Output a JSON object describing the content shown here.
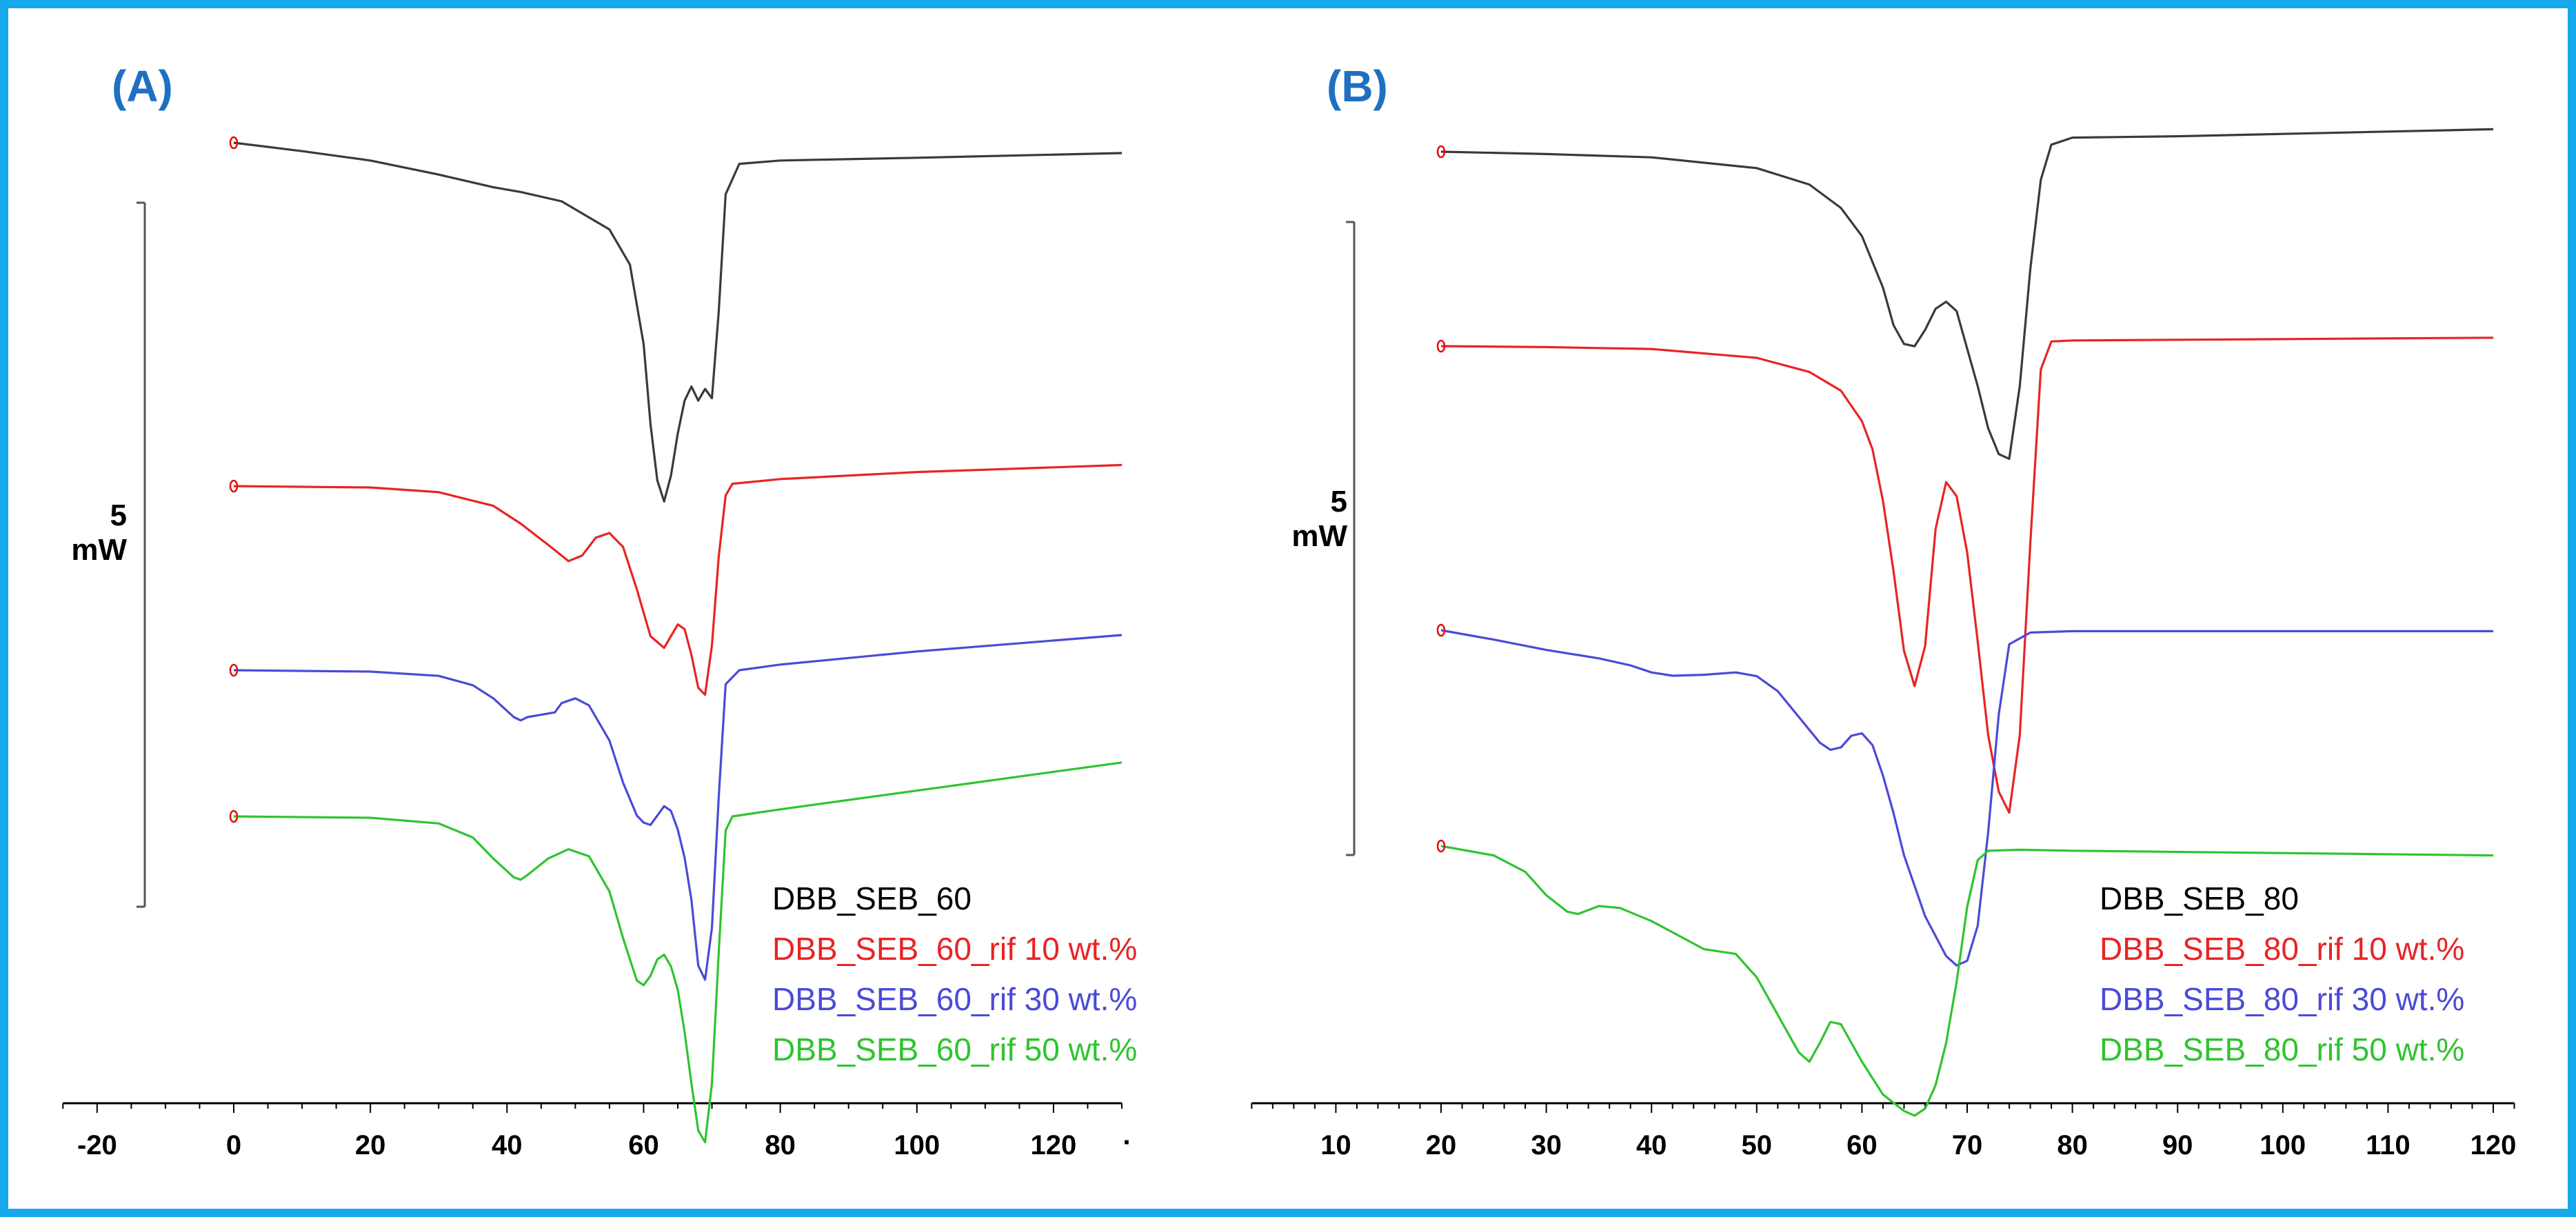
{
  "figure": {
    "border_color": "#18a8ec",
    "panel_letter_color": "#1f70c1"
  },
  "chart_data": [
    {
      "type": "line",
      "panel": "(A)",
      "xlim": [
        -25,
        130
      ],
      "xticks": [
        -20,
        0,
        20,
        40,
        60,
        80,
        100,
        120
      ],
      "xtick_labels": [
        "-20",
        "0",
        "20",
        "40",
        "60",
        "80",
        "100",
        "120"
      ],
      "last_tick_label": "·",
      "scale_bar": {
        "value": "5",
        "unit": "mW"
      },
      "legend_location": "bottom-right",
      "series": [
        {
          "name": "DBB_SEB_60",
          "color": "#3a3a3a",
          "x": [
            0,
            10,
            20,
            30,
            38,
            42,
            48,
            55,
            58,
            60,
            61,
            62,
            63,
            64,
            65,
            66,
            67,
            68,
            69,
            70,
            71,
            72,
            74,
            80,
            100,
            130
          ],
          "y": [
            0,
            -0.18,
            -0.38,
            -0.68,
            -0.95,
            -1.05,
            -1.25,
            -1.85,
            -2.6,
            -4.3,
            -6.0,
            -7.2,
            -7.65,
            -7.1,
            -6.2,
            -5.5,
            -5.2,
            -5.5,
            -5.25,
            -5.45,
            -3.6,
            -1.1,
            -0.45,
            -0.38,
            -0.32,
            -0.22
          ]
        },
        {
          "name": "DBB_SEB_60_rif 10 wt.%",
          "color": "#e82424",
          "x": [
            0,
            20,
            30,
            38,
            42,
            46,
            49,
            51,
            53,
            55,
            57,
            59,
            61,
            63,
            64,
            65,
            66,
            67,
            68,
            69,
            70,
            71,
            72,
            73,
            80,
            100,
            130
          ],
          "y": [
            0,
            -0.03,
            -0.13,
            -0.42,
            -0.8,
            -1.25,
            -1.6,
            -1.48,
            -1.1,
            -1.0,
            -1.3,
            -2.2,
            -3.2,
            -3.45,
            -3.2,
            -2.95,
            -3.05,
            -3.6,
            -4.3,
            -4.45,
            -3.4,
            -1.5,
            -0.2,
            0.05,
            0.15,
            0.3,
            0.45
          ]
        },
        {
          "name": "DBB_SEB_60_rif 30 wt.%",
          "color": "#4a4ad8",
          "x": [
            0,
            20,
            30,
            35,
            38,
            41,
            42,
            43,
            45,
            47,
            48,
            50,
            52,
            55,
            57,
            59,
            60,
            61,
            62,
            63,
            64,
            65,
            66,
            67,
            68,
            69,
            70,
            71,
            72,
            74,
            80,
            100,
            130
          ],
          "y": [
            0,
            -0.03,
            -0.12,
            -0.32,
            -0.6,
            -1.0,
            -1.07,
            -1.0,
            -0.95,
            -0.9,
            -0.7,
            -0.6,
            -0.75,
            -1.5,
            -2.4,
            -3.1,
            -3.25,
            -3.3,
            -3.1,
            -2.9,
            -3.0,
            -3.4,
            -4.0,
            -4.9,
            -6.3,
            -6.6,
            -5.5,
            -2.7,
            -0.3,
            0.0,
            0.12,
            0.4,
            0.75
          ]
        },
        {
          "name": "DBB_SEB_60_rif 50 wt.%",
          "color": "#2fc42f",
          "x": [
            0,
            20,
            30,
            35,
            38,
            41,
            42,
            43,
            46,
            49,
            52,
            55,
            57,
            59,
            60,
            61,
            62,
            63,
            64,
            65,
            66,
            67,
            68,
            69,
            70,
            71,
            72,
            73,
            80,
            100,
            130
          ],
          "y": [
            0,
            -0.03,
            -0.15,
            -0.45,
            -0.9,
            -1.3,
            -1.35,
            -1.25,
            -0.9,
            -0.7,
            -0.85,
            -1.6,
            -2.6,
            -3.5,
            -3.6,
            -3.4,
            -3.05,
            -2.95,
            -3.2,
            -3.7,
            -4.6,
            -5.7,
            -6.7,
            -6.95,
            -5.7,
            -2.9,
            -0.3,
            0.0,
            0.15,
            0.55,
            1.15
          ]
        }
      ]
    },
    {
      "type": "line",
      "panel": "(B)",
      "xlim": [
        2,
        122
      ],
      "xticks": [
        10,
        20,
        30,
        40,
        50,
        60,
        70,
        80,
        90,
        100,
        110,
        120
      ],
      "xtick_labels": [
        "10",
        "20",
        "30",
        "40",
        "50",
        "60",
        "70",
        "80",
        "90",
        "100",
        "110",
        "120"
      ],
      "scale_bar": {
        "value": "5",
        "unit": "mW"
      },
      "legend_location": "bottom-right",
      "series": [
        {
          "name": "DBB_SEB_80",
          "color": "#3a3a3a",
          "x": [
            20,
            30,
            40,
            50,
            55,
            58,
            60,
            62,
            63,
            64,
            65,
            66,
            67,
            68,
            69,
            70,
            71,
            72,
            73,
            74,
            75,
            76,
            77,
            78,
            80,
            90,
            100,
            120
          ],
          "y": [
            0,
            -0.05,
            -0.12,
            -0.35,
            -0.7,
            -1.2,
            -1.8,
            -2.9,
            -3.7,
            -4.1,
            -4.15,
            -3.8,
            -3.35,
            -3.2,
            -3.4,
            -4.2,
            -5.0,
            -5.9,
            -6.45,
            -6.55,
            -5.0,
            -2.5,
            -0.6,
            0.15,
            0.3,
            0.33,
            0.38,
            0.48
          ]
        },
        {
          "name": "DBB_SEB_80_rif 10 wt.%",
          "color": "#e82424",
          "x": [
            20,
            30,
            40,
            50,
            55,
            58,
            60,
            61,
            62,
            63,
            64,
            65,
            66,
            67,
            68,
            69,
            70,
            71,
            72,
            73,
            74,
            75,
            76,
            77,
            78,
            80,
            100,
            120
          ],
          "y": [
            0,
            -0.02,
            -0.06,
            -0.25,
            -0.55,
            -0.95,
            -1.6,
            -2.2,
            -3.3,
            -4.8,
            -6.5,
            -7.25,
            -6.4,
            -3.9,
            -2.9,
            -3.2,
            -4.4,
            -6.3,
            -8.3,
            -9.5,
            -9.95,
            -8.3,
            -4.2,
            -0.5,
            0.1,
            0.12,
            0.15,
            0.18
          ]
        },
        {
          "name": "DBB_SEB_80_rif 30 wt.%",
          "color": "#4a4ad8",
          "x": [
            20,
            25,
            30,
            35,
            38,
            40,
            42,
            45,
            48,
            50,
            52,
            54,
            56,
            57,
            58,
            59,
            60,
            61,
            62,
            63,
            64,
            66,
            68,
            69,
            70,
            71,
            72,
            73,
            74,
            76,
            80,
            100,
            120
          ],
          "y": [
            0,
            -0.2,
            -0.42,
            -0.6,
            -0.75,
            -0.9,
            -0.97,
            -0.95,
            -0.9,
            -0.98,
            -1.3,
            -1.85,
            -2.4,
            -2.55,
            -2.5,
            -2.25,
            -2.2,
            -2.45,
            -3.1,
            -3.9,
            -4.8,
            -6.1,
            -6.95,
            -7.15,
            -7.05,
            -6.3,
            -4.3,
            -1.8,
            -0.3,
            -0.05,
            -0.02,
            -0.02,
            -0.02
          ]
        },
        {
          "name": "DBB_SEB_80_rif 50 wt.%",
          "color": "#2fc42f",
          "x": [
            20,
            25,
            28,
            30,
            32,
            33,
            35,
            37,
            40,
            45,
            48,
            50,
            52,
            54,
            55,
            56,
            57,
            58,
            60,
            62,
            64,
            65,
            66,
            67,
            68,
            69,
            70,
            71,
            72,
            75,
            80,
            100,
            120
          ],
          "y": [
            0,
            -0.2,
            -0.55,
            -1.05,
            -1.4,
            -1.45,
            -1.28,
            -1.32,
            -1.6,
            -2.2,
            -2.3,
            -2.8,
            -3.6,
            -4.4,
            -4.6,
            -4.2,
            -3.75,
            -3.8,
            -4.6,
            -5.3,
            -5.65,
            -5.75,
            -5.6,
            -5.1,
            -4.2,
            -2.9,
            -1.3,
            -0.3,
            -0.1,
            -0.08,
            -0.1,
            -0.15,
            -0.2
          ]
        }
      ]
    }
  ]
}
